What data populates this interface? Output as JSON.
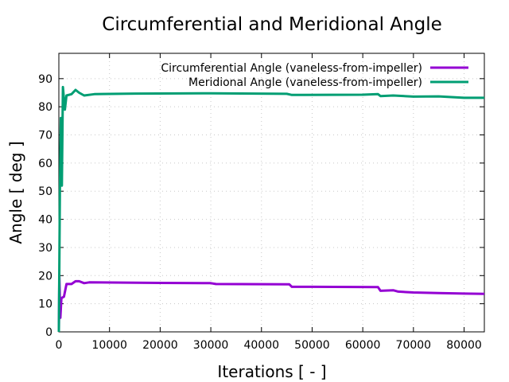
{
  "chart_data": {
    "type": "line",
    "title": "Circumferential and Meridional Angle",
    "xlabel": "Iterations [ - ]",
    "ylabel": "Angle [ deg ]",
    "xlim": [
      0,
      84000
    ],
    "ylim": [
      0,
      99
    ],
    "grid": true,
    "legend_position": "top-right",
    "xticks": [
      0,
      10000,
      20000,
      30000,
      40000,
      50000,
      60000,
      70000,
      80000
    ],
    "xtick_labels": [
      "0",
      "10000",
      "20000",
      "30000",
      "40000",
      "50000",
      "60000",
      "70000",
      "80000"
    ],
    "yticks": [
      0,
      10,
      20,
      30,
      40,
      50,
      60,
      70,
      80,
      90
    ],
    "ytick_labels": [
      "0",
      "10",
      "20",
      "30",
      "40",
      "50",
      "60",
      "70",
      "80",
      "90"
    ],
    "series": [
      {
        "name": "Circumferential Angle (vaneless-from-impeller)",
        "color": "#9400d3",
        "x": [
          0,
          100,
          300,
          500,
          1000,
          1500,
          2500,
          3300,
          4000,
          5000,
          6000,
          20000,
          30000,
          31000,
          45500,
          46000,
          50000,
          63000,
          63500,
          66000,
          67000,
          70000,
          75000,
          80000,
          84000
        ],
        "y": [
          0,
          20,
          5,
          12,
          12.5,
          17,
          17,
          18,
          18,
          17.3,
          17.6,
          17.4,
          17.3,
          17,
          16.9,
          16,
          16,
          15.9,
          14.6,
          14.8,
          14.3,
          14,
          13.8,
          13.6,
          13.5
        ]
      },
      {
        "name": "Meridional Angle (vaneless-from-impeller)",
        "color": "#009e73",
        "x": [
          0,
          200,
          400,
          600,
          800,
          1200,
          1500,
          2500,
          3300,
          4000,
          5000,
          7000,
          15000,
          30000,
          45000,
          46000,
          60000,
          63000,
          63500,
          66000,
          70000,
          75000,
          80000,
          84000
        ],
        "y": [
          0,
          50,
          76,
          52,
          87,
          79,
          84,
          84.5,
          86,
          85,
          84,
          84.5,
          84.7,
          84.8,
          84.6,
          84.2,
          84.3,
          84.5,
          83.8,
          84,
          83.6,
          83.7,
          83.2,
          83.2
        ]
      }
    ]
  }
}
